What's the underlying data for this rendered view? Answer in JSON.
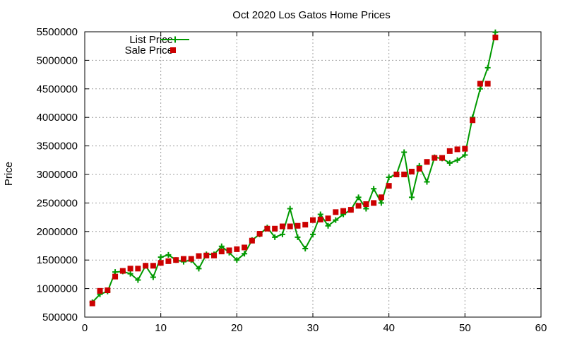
{
  "chart_data": {
    "type": "line",
    "title": "Oct 2020 Los Gatos Home Prices",
    "xlabel": "",
    "ylabel": "Price",
    "xlim": [
      0,
      60
    ],
    "ylim": [
      500000,
      5500000
    ],
    "x_ticks": [
      0,
      10,
      20,
      30,
      40,
      50,
      60
    ],
    "y_ticks": [
      500000,
      1000000,
      1500000,
      2000000,
      2500000,
      3000000,
      3500000,
      4000000,
      4500000,
      5000000,
      5500000
    ],
    "grid": true,
    "legend_position": "top-left",
    "series": [
      {
        "name": "List Price",
        "style": "line-with-plus-markers",
        "color": "#009900",
        "x": [
          1,
          2,
          3,
          4,
          5,
          6,
          7,
          8,
          9,
          10,
          11,
          12,
          13,
          14,
          15,
          16,
          17,
          18,
          19,
          20,
          21,
          22,
          23,
          24,
          25,
          26,
          27,
          28,
          29,
          30,
          31,
          32,
          33,
          34,
          35,
          36,
          37,
          38,
          39,
          40,
          41,
          42,
          43,
          44,
          45,
          46,
          47,
          48,
          49,
          50,
          51,
          52,
          53,
          54
        ],
        "values": [
          760000,
          900000,
          950000,
          1290000,
          1300000,
          1260000,
          1150000,
          1400000,
          1200000,
          1550000,
          1590000,
          1500000,
          1470000,
          1500000,
          1350000,
          1600000,
          1600000,
          1740000,
          1630000,
          1500000,
          1610000,
          1850000,
          1950000,
          2070000,
          1900000,
          1950000,
          2400000,
          1900000,
          1700000,
          1950000,
          2300000,
          2100000,
          2200000,
          2300000,
          2380000,
          2600000,
          2400000,
          2750000,
          2500000,
          2950000,
          3000000,
          3390000,
          2600000,
          3150000,
          2870000,
          3300000,
          3280000,
          3200000,
          3250000,
          3340000,
          4000000,
          4500000,
          4870000,
          5490000
        ]
      },
      {
        "name": "Sale Price",
        "style": "square-markers",
        "color": "#cc0000",
        "x": [
          1,
          2,
          3,
          4,
          5,
          6,
          7,
          8,
          9,
          10,
          11,
          12,
          13,
          14,
          15,
          16,
          17,
          18,
          19,
          20,
          21,
          22,
          23,
          24,
          25,
          26,
          27,
          28,
          29,
          30,
          31,
          32,
          33,
          34,
          35,
          36,
          37,
          38,
          39,
          40,
          41,
          42,
          43,
          44,
          45,
          46,
          47,
          48,
          49,
          50,
          51,
          52,
          53,
          54
        ],
        "values": [
          740000,
          960000,
          970000,
          1210000,
          1310000,
          1350000,
          1350000,
          1400000,
          1400000,
          1450000,
          1480000,
          1500000,
          1520000,
          1520000,
          1570000,
          1580000,
          1580000,
          1650000,
          1670000,
          1690000,
          1720000,
          1840000,
          1960000,
          2050000,
          2050000,
          2090000,
          2090000,
          2100000,
          2120000,
          2200000,
          2210000,
          2230000,
          2340000,
          2360000,
          2380000,
          2450000,
          2480000,
          2500000,
          2600000,
          2800000,
          3000000,
          3000000,
          3050000,
          3100000,
          3220000,
          3290000,
          3290000,
          3410000,
          3440000,
          3450000,
          3950000,
          4590000,
          4590000,
          5400000
        ]
      }
    ]
  }
}
